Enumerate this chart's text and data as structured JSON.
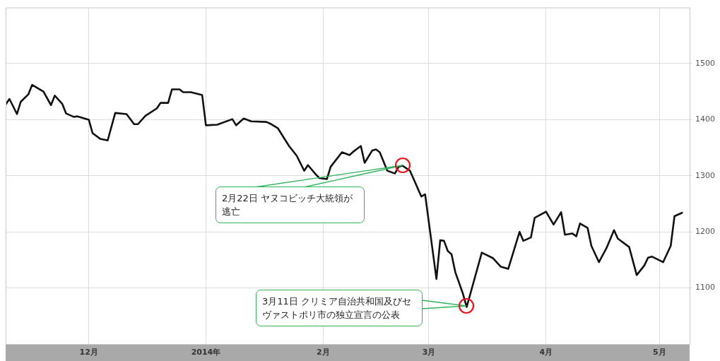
{
  "chart_data": {
    "type": "line",
    "x": [
      "2013-11-09",
      "2013-11-10",
      "2013-11-12",
      "2013-11-13",
      "2013-11-15",
      "2013-11-16",
      "2013-11-19",
      "2013-11-21",
      "2013-11-22",
      "2013-11-24",
      "2013-11-25",
      "2013-11-27",
      "2013-11-28",
      "2013-12-01",
      "2013-12-02",
      "2013-12-04",
      "2013-12-06",
      "2013-12-08",
      "2013-12-11",
      "2013-12-13",
      "2013-12-14",
      "2013-12-16",
      "2013-12-19",
      "2013-12-20",
      "2013-12-22",
      "2013-12-23",
      "2013-12-25",
      "2013-12-26",
      "2013-12-28",
      "2013-12-31",
      "2014-01-01",
      "2014-01-04",
      "2014-01-08",
      "2014-01-09",
      "2014-01-11",
      "2014-01-13",
      "2014-01-17",
      "2014-01-18",
      "2014-01-20",
      "2014-01-23",
      "2014-01-25",
      "2014-01-27",
      "2014-01-28",
      "2014-01-30",
      "2014-01-31",
      "2014-02-02",
      "2014-02-03",
      "2014-02-06",
      "2014-02-08",
      "2014-02-09",
      "2014-02-11",
      "2014-02-12",
      "2014-02-14",
      "2014-02-15",
      "2014-02-16",
      "2014-02-18",
      "2014-02-20",
      "2014-02-21",
      "2014-02-22",
      "2014-02-24",
      "2014-02-27",
      "2014-02-28",
      "2014-03-03",
      "2014-03-04",
      "2014-03-05",
      "2014-03-06",
      "2014-03-07",
      "2014-03-08",
      "2014-03-10",
      "2014-03-11",
      "2014-03-15",
      "2014-03-18",
      "2014-03-20",
      "2014-03-22",
      "2014-03-24",
      "2014-03-25",
      "2014-03-26",
      "2014-03-28",
      "2014-03-29",
      "2014-04-01",
      "2014-04-03",
      "2014-04-05",
      "2014-04-06",
      "2014-04-08",
      "2014-04-09",
      "2014-04-10",
      "2014-04-12",
      "2014-04-13",
      "2014-04-15",
      "2014-04-17",
      "2014-04-19",
      "2014-04-20",
      "2014-04-23",
      "2014-04-25",
      "2014-04-27",
      "2014-04-28",
      "2014-04-29",
      "2014-05-02",
      "2014-05-04",
      "2014-05-05",
      "2014-05-07"
    ],
    "series": [
      {
        "color": "#111111",
        "values": [
          1427,
          1437,
          1410,
          1432,
          1445,
          1462,
          1450,
          1426,
          1443,
          1428,
          1411,
          1405,
          1406,
          1400,
          1376,
          1366,
          1363,
          1412,
          1410,
          1392,
          1392,
          1407,
          1420,
          1430,
          1430,
          1454,
          1454,
          1449,
          1449,
          1444,
          1390,
          1391,
          1401,
          1390,
          1402,
          1397,
          1396,
          1393,
          1385,
          1353,
          1336,
          1309,
          1319,
          1303,
          1296,
          1294,
          1316,
          1342,
          1337,
          1343,
          1353,
          1323,
          1345,
          1347,
          1342,
          1309,
          1304,
          1316,
          1318,
          1309,
          1263,
          1267,
          1116,
          1185,
          1184,
          1166,
          1160,
          1128,
          1090,
          1066,
          1163,
          1153,
          1138,
          1134,
          1178,
          1200,
          1184,
          1190,
          1225,
          1236,
          1213,
          1235,
          1195,
          1197,
          1192,
          1215,
          1207,
          1175,
          1146,
          1171,
          1203,
          1188,
          1173,
          1123,
          1140,
          1154,
          1156,
          1146,
          1175,
          1228,
          1234
        ]
      }
    ],
    "xlim": [
      "2013-11-09",
      "2014-05-09"
    ],
    "xticks": [
      {
        "value": "2013-12-01",
        "label": "12月"
      },
      {
        "value": "2014-01-01",
        "label": "2014年"
      },
      {
        "value": "2014-02-01",
        "label": "2月"
      },
      {
        "value": "2014-03-01",
        "label": "3月"
      },
      {
        "value": "2014-04-01",
        "label": "4月"
      },
      {
        "value": "2014-05-01",
        "label": "5月"
      }
    ],
    "ylim": [
      1000,
      1600
    ],
    "yticks": [
      1100,
      1200,
      1300,
      1400,
      1500
    ],
    "grid": true,
    "legend": false,
    "marker": "none",
    "line_style": "solid",
    "annotations": [
      "2月22日 ヤヌコビッチ大統領が逃亡",
      "3月11日 クリミア自治共和国及びセヴァストポリ市の独立宣言の公表"
    ]
  }
}
